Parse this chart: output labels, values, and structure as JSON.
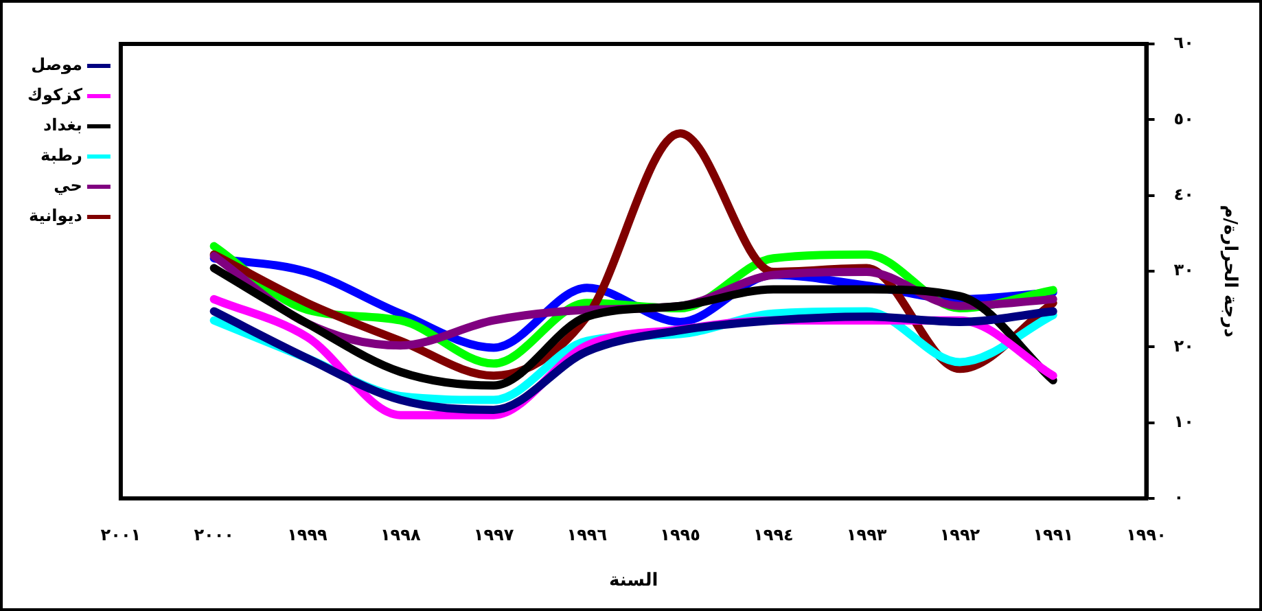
{
  "chart_data": {
    "type": "line",
    "xlabel": "السنة",
    "ylabel": "درجة الحرارة/م",
    "x": [
      2000,
      1999,
      1998,
      1997,
      1996,
      1995,
      1994,
      1993,
      1992,
      1991
    ],
    "series": [
      {
        "name": "موصل",
        "color": "#000080",
        "values": [
          24.7,
          18.5,
          13,
          11.7,
          19.4,
          22.2,
          23.5,
          24,
          23.3,
          24.7
        ]
      },
      {
        "name": "كزكوك",
        "color": "#ff00ff",
        "values": [
          26.3,
          21.3,
          11,
          11,
          20.2,
          22.3,
          23.5,
          23.5,
          23.5,
          16.2
        ]
      },
      {
        "name": "بغداد",
        "color": "#000000",
        "values": [
          30.4,
          23.1,
          16.7,
          14.9,
          24,
          25.4,
          27.6,
          27.6,
          26.7,
          15.6
        ]
      },
      {
        "name": "رطبة",
        "color": "#00ffff",
        "values": [
          23.5,
          18.5,
          13.5,
          13,
          20.8,
          21.7,
          24.4,
          24.7,
          18,
          24.2
        ]
      },
      {
        "name": "حي",
        "color": "#800080",
        "values": [
          32,
          23.1,
          20.2,
          23.5,
          24.9,
          25.4,
          29.5,
          29.9,
          25.4,
          26.3
        ]
      },
      {
        "name": "ديوانية",
        "color": "#800000",
        "values": [
          32.2,
          25.8,
          20.8,
          16.2,
          24,
          48.2,
          29.9,
          30.4,
          17.1,
          25.8
        ]
      },
      {
        "color": "#00ff00",
        "values": [
          33.3,
          24.9,
          23.5,
          17.8,
          25.8,
          25.1,
          31.7,
          32.2,
          25.1,
          27.5
        ]
      },
      {
        "color": "#0000ff",
        "values": [
          31.7,
          29.9,
          24.4,
          19.9,
          27.8,
          23.3,
          29.5,
          28.1,
          26.3,
          27.2
        ]
      }
    ],
    "xlim": [
      2001,
      1990
    ],
    "xticks": [
      {
        "value": 2001,
        "label": "٢٠٠١"
      },
      {
        "value": 2000,
        "label": "٢٠٠٠"
      },
      {
        "value": 1999,
        "label": "١٩٩٩"
      },
      {
        "value": 1998,
        "label": "١٩٩٨"
      },
      {
        "value": 1997,
        "label": "١٩٩٧"
      },
      {
        "value": 1996,
        "label": "١٩٩٦"
      },
      {
        "value": 1995,
        "label": "١٩٩٥"
      },
      {
        "value": 1994,
        "label": "١٩٩٤"
      },
      {
        "value": 1993,
        "label": "١٩٩٣"
      },
      {
        "value": 1992,
        "label": "١٩٩٢"
      },
      {
        "value": 1991,
        "label": "١٩٩١"
      },
      {
        "value": 1990,
        "label": "١٩٩٠"
      }
    ],
    "ylim": [
      0,
      60
    ],
    "yticks": [
      {
        "value": 0,
        "label": "٠"
      },
      {
        "value": 10,
        "label": "١٠"
      },
      {
        "value": 20,
        "label": "٢٠"
      },
      {
        "value": 30,
        "label": "٣٠"
      },
      {
        "value": 40,
        "label": "٤٠"
      },
      {
        "value": 50,
        "label": "٥٠"
      },
      {
        "value": 60,
        "label": "٦٠"
      }
    ],
    "grid": false,
    "legend": "left",
    "marker": "none",
    "line_style": "solid"
  }
}
